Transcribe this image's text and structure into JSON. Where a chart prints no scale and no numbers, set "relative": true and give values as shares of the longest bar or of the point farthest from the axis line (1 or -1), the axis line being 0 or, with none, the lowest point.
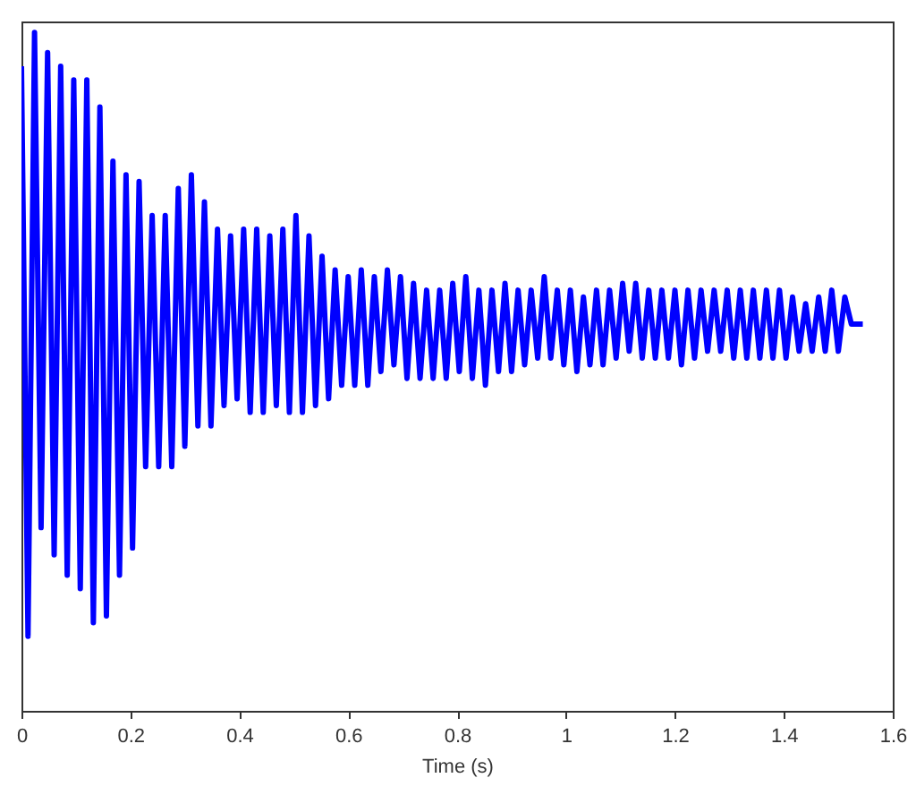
{
  "chart_data": {
    "type": "line",
    "xlabel": "Time (s)",
    "relative": true,
    "xlim": [
      0,
      1.6
    ],
    "xticks": [
      0,
      0.2,
      0.4,
      0.6,
      0.8,
      1,
      1.2,
      1.4,
      1.6
    ],
    "x": [
      0,
      0.012,
      0.024,
      0.036,
      0.048,
      0.06,
      0.072,
      0.084,
      0.096,
      0.108,
      0.12,
      0.132,
      0.144,
      0.156,
      0.168,
      0.18,
      0.192,
      0.204,
      0.216,
      0.228,
      0.24,
      0.252,
      0.264,
      0.276,
      0.288,
      0.3,
      0.312,
      0.324,
      0.336,
      0.348,
      0.36,
      0.372,
      0.384,
      0.396,
      0.408,
      0.42,
      0.432,
      0.444,
      0.456,
      0.468,
      0.48,
      0.492,
      0.504,
      0.516,
      0.528,
      0.54,
      0.552,
      0.564,
      0.576,
      0.588,
      0.6,
      0.612,
      0.624,
      0.636,
      0.648,
      0.66,
      0.672,
      0.684,
      0.696,
      0.708,
      0.72,
      0.732,
      0.744,
      0.756,
      0.768,
      0.78,
      0.792,
      0.804,
      0.816,
      0.828,
      0.84,
      0.852,
      0.864,
      0.876,
      0.888,
      0.9,
      0.912,
      0.924,
      0.936,
      0.948,
      0.96,
      0.972,
      0.984,
      0.996,
      1.008,
      1.02,
      1.032,
      1.044,
      1.056,
      1.068,
      1.08,
      1.092,
      1.104,
      1.116,
      1.128,
      1.14,
      1.152,
      1.164,
      1.176,
      1.188,
      1.2,
      1.212,
      1.224,
      1.236,
      1.248,
      1.26,
      1.272,
      1.284,
      1.296,
      1.308,
      1.32,
      1.332,
      1.344,
      1.356,
      1.368,
      1.38,
      1.392,
      1.404,
      1.416,
      1.428,
      1.44,
      1.452,
      1.464,
      1.476,
      1.488,
      1.5,
      1.512,
      1.524,
      1.545
    ],
    "series": [
      {
        "color": "#0000ff",
        "values": [
          0.95,
          0.11,
          1.0,
          0.27,
          0.97,
          0.23,
          0.95,
          0.2,
          0.93,
          0.18,
          0.93,
          0.13,
          0.89,
          0.14,
          0.81,
          0.2,
          0.79,
          0.24,
          0.78,
          0.36,
          0.73,
          0.36,
          0.73,
          0.36,
          0.77,
          0.39,
          0.79,
          0.42,
          0.75,
          0.42,
          0.71,
          0.45,
          0.7,
          0.46,
          0.71,
          0.44,
          0.71,
          0.44,
          0.7,
          0.45,
          0.71,
          0.44,
          0.73,
          0.44,
          0.7,
          0.45,
          0.67,
          0.46,
          0.65,
          0.48,
          0.64,
          0.48,
          0.65,
          0.48,
          0.64,
          0.5,
          0.65,
          0.51,
          0.64,
          0.49,
          0.63,
          0.49,
          0.62,
          0.49,
          0.62,
          0.49,
          0.63,
          0.5,
          0.64,
          0.49,
          0.62,
          0.48,
          0.62,
          0.5,
          0.63,
          0.5,
          0.62,
          0.51,
          0.62,
          0.52,
          0.64,
          0.52,
          0.62,
          0.51,
          0.62,
          0.5,
          0.61,
          0.51,
          0.62,
          0.51,
          0.62,
          0.52,
          0.63,
          0.53,
          0.63,
          0.52,
          0.62,
          0.52,
          0.62,
          0.52,
          0.62,
          0.51,
          0.62,
          0.52,
          0.62,
          0.53,
          0.62,
          0.53,
          0.62,
          0.52,
          0.62,
          0.52,
          0.62,
          0.52,
          0.62,
          0.52,
          0.62,
          0.52,
          0.61,
          0.53,
          0.6,
          0.53,
          0.61,
          0.53,
          0.62,
          0.53,
          0.61,
          0.57,
          0.57
        ]
      }
    ]
  }
}
